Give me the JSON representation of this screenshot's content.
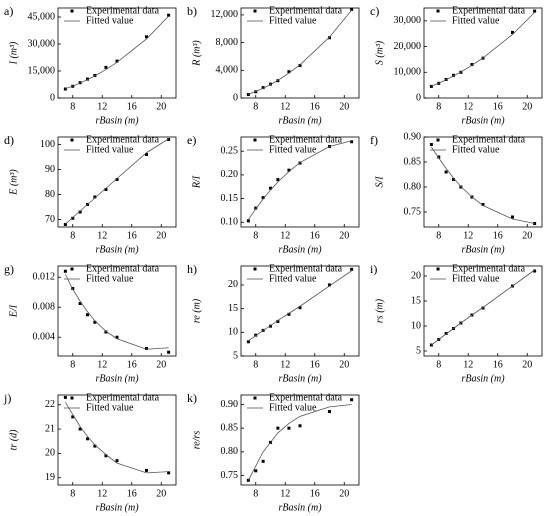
{
  "chart_data": [
    {
      "type": "line",
      "panel_label": "a)",
      "x_label": "rBasin (m)",
      "y_label": "I (m³)",
      "xlim": [
        6,
        22
      ],
      "xticks": [
        8,
        12,
        16,
        20
      ],
      "ylim": [
        0,
        50000
      ],
      "yticks": [
        0,
        {
          "value": 15000,
          "label": "15,000"
        },
        {
          "value": 30000,
          "label": "30,000"
        },
        {
          "value": 45000,
          "label": "45,000"
        }
      ],
      "legend": "upper left",
      "series": [
        {
          "name": "Experimental data",
          "style": "markers",
          "color": "#000000",
          "x": [
            7,
            8,
            9,
            10,
            11,
            12.5,
            14,
            18,
            21
          ],
          "values": [
            5000,
            6500,
            8500,
            10500,
            12500,
            17000,
            20500,
            34000,
            46000
          ]
        },
        {
          "name": "Fitted value",
          "style": "line",
          "color": "#555555",
          "x": [
            7,
            8,
            9,
            10,
            11,
            12.5,
            14,
            18,
            21
          ],
          "values": [
            5200,
            6600,
            8300,
            10200,
            12300,
            15800,
            19800,
            32800,
            45500
          ]
        }
      ]
    },
    {
      "type": "line",
      "panel_label": "b)",
      "x_label": "rBasin (m)",
      "y_label": "R (m³)",
      "xlim": [
        6,
        22
      ],
      "xticks": [
        8,
        12,
        16,
        20
      ],
      "ylim": [
        0,
        13000
      ],
      "yticks": [
        0,
        {
          "value": 4000,
          "label": "4,000"
        },
        {
          "value": 8000,
          "label": "8,000"
        },
        {
          "value": 12000,
          "label": "12,000"
        }
      ],
      "legend": "upper left",
      "series": [
        {
          "name": "Experimental data",
          "style": "markers",
          "color": "#000000",
          "x": [
            7,
            8,
            9,
            10,
            11,
            12.5,
            14,
            18,
            21
          ],
          "values": [
            500,
            900,
            1500,
            2000,
            2500,
            3800,
            4700,
            8700,
            12800
          ]
        },
        {
          "name": "Fitted value",
          "style": "line",
          "color": "#555555",
          "x": [
            7,
            8,
            9,
            10,
            11,
            12.5,
            14,
            18,
            21
          ],
          "values": [
            550,
            950,
            1400,
            1950,
            2550,
            3600,
            4800,
            8800,
            12700
          ]
        }
      ]
    },
    {
      "type": "line",
      "panel_label": "c)",
      "x_label": "rBasin (m)",
      "y_label": "S (m³)",
      "xlim": [
        6,
        22
      ],
      "xticks": [
        8,
        12,
        16,
        20
      ],
      "ylim": [
        0,
        35000
      ],
      "yticks": [
        0,
        {
          "value": 10000,
          "label": "10,000"
        },
        {
          "value": 20000,
          "label": "20,000"
        },
        {
          "value": 30000,
          "label": "30,000"
        }
      ],
      "legend": "upper left",
      "series": [
        {
          "name": "Experimental data",
          "style": "markers",
          "color": "#000000",
          "x": [
            7,
            8,
            9,
            10,
            11,
            12.5,
            14,
            18,
            21
          ],
          "values": [
            4500,
            5700,
            7200,
            8800,
            10000,
            13000,
            15500,
            25500,
            33800
          ]
        },
        {
          "name": "Fitted value",
          "style": "line",
          "color": "#555555",
          "x": [
            7,
            8,
            9,
            10,
            11,
            12.5,
            14,
            18,
            21
          ],
          "values": [
            4600,
            5800,
            7100,
            8600,
            10100,
            12700,
            15600,
            24700,
            33300
          ]
        }
      ]
    },
    {
      "type": "line",
      "panel_label": "d)",
      "x_label": "rBasin (m)",
      "y_label": "E (m³)",
      "xlim": [
        6,
        22
      ],
      "xticks": [
        8,
        12,
        16,
        20
      ],
      "ylim": [
        67,
        103
      ],
      "yticks": [
        70,
        80,
        90,
        100
      ],
      "legend": "upper left",
      "series": [
        {
          "name": "Experimental data",
          "style": "markers",
          "color": "#000000",
          "x": [
            7,
            8,
            9,
            10,
            11,
            12.5,
            14,
            18,
            21
          ],
          "values": [
            68,
            70.5,
            73,
            76,
            79,
            82,
            86,
            96,
            102
          ]
        },
        {
          "name": "Fitted value",
          "style": "line",
          "color": "#555555",
          "x": [
            7,
            8,
            9,
            10,
            11,
            12.5,
            14,
            18,
            21
          ],
          "values": [
            68.2,
            70.8,
            73.4,
            76,
            78.6,
            82.5,
            86.4,
            96.7,
            102.3
          ]
        }
      ]
    },
    {
      "type": "line",
      "panel_label": "e)",
      "x_label": "rBasin (m)",
      "y_label": "R/I",
      "xlim": [
        6,
        22
      ],
      "xticks": [
        8,
        12,
        16,
        20
      ],
      "ylim": [
        0.09,
        0.28
      ],
      "yticks": [
        {
          "value": 0.1,
          "label": "0.10"
        },
        0.15,
        {
          "value": 0.2,
          "label": "0.20"
        },
        0.25
      ],
      "legend": "upper left",
      "series": [
        {
          "name": "Experimental data",
          "style": "markers",
          "color": "#000000",
          "x": [
            7,
            8,
            9,
            10,
            11,
            12.5,
            14,
            18,
            21
          ],
          "values": [
            0.103,
            0.13,
            0.152,
            0.172,
            0.19,
            0.21,
            0.225,
            0.26,
            0.27
          ]
        },
        {
          "name": "Fitted value",
          "style": "line",
          "color": "#555555",
          "x": [
            7,
            8,
            9,
            10,
            11,
            12.5,
            14,
            18,
            21
          ],
          "values": [
            0.106,
            0.128,
            0.149,
            0.168,
            0.185,
            0.207,
            0.226,
            0.26,
            0.272
          ]
        }
      ]
    },
    {
      "type": "line",
      "panel_label": "f)",
      "x_label": "rBasin (m)",
      "y_label": "S/I",
      "xlim": [
        6,
        22
      ],
      "xticks": [
        8,
        12,
        16,
        20
      ],
      "ylim": [
        0.72,
        0.9
      ],
      "yticks": [
        0.75,
        {
          "value": 0.8,
          "label": "0.80"
        },
        0.85,
        {
          "value": 0.9,
          "label": "0.90"
        }
      ],
      "legend": "upper left",
      "series": [
        {
          "name": "Experimental data",
          "style": "markers",
          "color": "#000000",
          "x": [
            7,
            8,
            9,
            10,
            11,
            12.5,
            14,
            18,
            21
          ],
          "values": [
            0.885,
            0.86,
            0.83,
            0.815,
            0.8,
            0.78,
            0.765,
            0.74,
            0.727
          ]
        },
        {
          "name": "Fitted value",
          "style": "line",
          "color": "#555555",
          "x": [
            7,
            8,
            9,
            10,
            11,
            12.5,
            14,
            18,
            21
          ],
          "values": [
            0.88,
            0.858,
            0.837,
            0.818,
            0.801,
            0.78,
            0.763,
            0.736,
            0.727
          ]
        }
      ]
    },
    {
      "type": "line",
      "panel_label": "g)",
      "x_label": "rBasin (m)",
      "y_label": "E/I",
      "xlim": [
        6,
        22
      ],
      "xticks": [
        8,
        12,
        16,
        20
      ],
      "ylim": [
        0.0015,
        0.0135
      ],
      "yticks": [
        0.004,
        0.008,
        0.012
      ],
      "legend": "upper left",
      "series": [
        {
          "name": "Experimental data",
          "style": "markers",
          "color": "#000000",
          "x": [
            7,
            8,
            9,
            10,
            11,
            12.5,
            14,
            18,
            21
          ],
          "values": [
            0.0128,
            0.0105,
            0.0085,
            0.007,
            0.006,
            0.0047,
            0.004,
            0.0025,
            0.002
          ]
        },
        {
          "name": "Fitted value",
          "style": "line",
          "color": "#555555",
          "x": [
            7,
            8,
            9,
            10,
            11,
            12.5,
            14,
            18,
            21
          ],
          "values": [
            0.0124,
            0.0104,
            0.0088,
            0.0074,
            0.0062,
            0.0048,
            0.0038,
            0.0024,
            0.0026
          ]
        }
      ]
    },
    {
      "type": "line",
      "panel_label": "h)",
      "x_label": "rBasin (m)",
      "y_label": "re (m)",
      "xlim": [
        6,
        22
      ],
      "xticks": [
        8,
        12,
        16,
        20
      ],
      "ylim": [
        5,
        24
      ],
      "yticks": [
        5,
        10,
        15,
        20
      ],
      "legend": "upper left",
      "series": [
        {
          "name": "Experimental data",
          "style": "markers",
          "color": "#000000",
          "x": [
            7,
            8,
            9,
            10,
            11,
            12.5,
            14,
            18,
            21
          ],
          "values": [
            8,
            9.4,
            10.4,
            11.3,
            12.3,
            13.8,
            15.2,
            20,
            23.3
          ]
        },
        {
          "name": "Fitted value",
          "style": "line",
          "color": "#555555",
          "x": [
            7,
            8,
            9,
            10,
            11,
            12.5,
            14,
            18,
            21
          ],
          "values": [
            8.2,
            9.3,
            10.4,
            11.4,
            12.5,
            14,
            15.5,
            19.8,
            23
          ]
        }
      ]
    },
    {
      "type": "line",
      "panel_label": "i)",
      "x_label": "rBasin (m)",
      "y_label": "rs (m)",
      "xlim": [
        6,
        22
      ],
      "xticks": [
        8,
        12,
        16,
        20
      ],
      "ylim": [
        4,
        22
      ],
      "yticks": [
        5,
        10,
        15,
        20
      ],
      "legend": "upper left",
      "series": [
        {
          "name": "Experimental data",
          "style": "markers",
          "color": "#000000",
          "x": [
            7,
            8,
            9,
            10,
            11,
            12.5,
            14,
            18,
            21
          ],
          "values": [
            6.2,
            7.3,
            8.5,
            9.5,
            10.6,
            12.2,
            13.6,
            18,
            21
          ]
        },
        {
          "name": "Fitted value",
          "style": "line",
          "color": "#555555",
          "x": [
            7,
            8,
            9,
            10,
            11,
            12.5,
            14,
            18,
            21
          ],
          "values": [
            6.2,
            7.3,
            8.4,
            9.5,
            10.6,
            12.2,
            13.7,
            18,
            21.2
          ]
        }
      ]
    },
    {
      "type": "line",
      "panel_label": "j)",
      "x_label": "rBasin (m)",
      "y_label": "tr (d)",
      "xlim": [
        6,
        22
      ],
      "xticks": [
        8,
        12,
        16,
        20
      ],
      "ylim": [
        18.7,
        22.4
      ],
      "yticks": [
        19,
        20,
        21,
        22
      ],
      "legend": "upper left",
      "series": [
        {
          "name": "Experimental data",
          "style": "markers",
          "color": "#000000",
          "x": [
            7,
            8,
            9,
            10,
            11,
            12.5,
            14,
            18,
            21
          ],
          "values": [
            22.3,
            21.5,
            21,
            20.6,
            20.3,
            19.9,
            19.7,
            19.3,
            19.2
          ]
        },
        {
          "name": "Fitted value",
          "style": "line",
          "color": "#555555",
          "x": [
            7,
            8,
            9,
            10,
            11,
            12.5,
            14,
            18,
            21
          ],
          "values": [
            22.1,
            21.6,
            21.1,
            20.7,
            20.35,
            19.95,
            19.6,
            19.2,
            19.25
          ]
        }
      ]
    },
    {
      "type": "line",
      "panel_label": "k)",
      "x_label": "rBasin (m)",
      "y_label": "re/rs",
      "xlim": [
        6,
        22
      ],
      "xticks": [
        8,
        12,
        16,
        20
      ],
      "ylim": [
        0.73,
        0.92
      ],
      "yticks": [
        0.75,
        {
          "value": 0.8,
          "label": "0.80"
        },
        0.85,
        {
          "value": 0.9,
          "label": "0.90"
        }
      ],
      "legend": "upper left",
      "series": [
        {
          "name": "Experimental data",
          "style": "markers",
          "color": "#000000",
          "x": [
            7,
            8,
            9,
            10,
            11,
            12.5,
            14,
            18,
            21
          ],
          "values": [
            0.74,
            0.76,
            0.78,
            0.82,
            0.85,
            0.85,
            0.855,
            0.885,
            0.91
          ]
        },
        {
          "name": "Fitted value",
          "style": "line",
          "color": "#555555",
          "x": [
            7,
            8,
            9,
            10,
            11,
            12.5,
            14,
            18,
            21
          ],
          "values": [
            0.74,
            0.77,
            0.8,
            0.82,
            0.84,
            0.86,
            0.875,
            0.895,
            0.9
          ]
        }
      ]
    }
  ]
}
